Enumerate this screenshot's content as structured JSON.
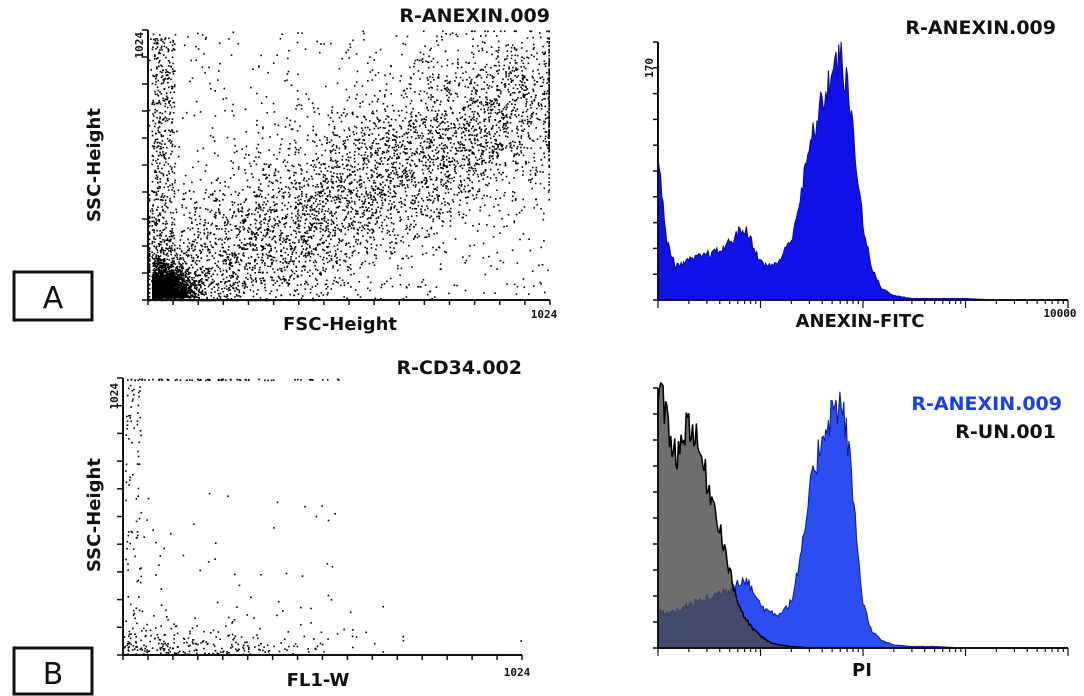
{
  "panels": [
    {
      "id": "A",
      "label": "A"
    },
    {
      "id": "B",
      "label": "B"
    }
  ],
  "chart_data": [
    {
      "type": "scatter",
      "panel": "A",
      "title": "R-ANEXIN.009",
      "xlabel": "FSC-Height",
      "ylabel": "SSC-Height",
      "x_tick_labels": [
        "1024"
      ],
      "y_tick_labels": [
        "1024"
      ],
      "xlim": [
        0,
        1024
      ],
      "ylim": [
        0,
        1024
      ],
      "distribution": "dense cluster near origin (~30,~40) plus diagonal cloud rising toward upper-right (~650,~650); sparse column near x~10",
      "color": "#000000"
    },
    {
      "type": "area",
      "panel": "A",
      "title": "R-ANEXIN.009",
      "xlabel": "ANEXIN-FITC",
      "y_tick_labels": [
        "170"
      ],
      "x_tick_labels": [
        "10000"
      ],
      "xscale": "log",
      "xlim": [
        1,
        10000
      ],
      "ylim": [
        0,
        170
      ],
      "series": [
        {
          "color": "#1010e8",
          "x": [
            1,
            1.2,
            1.5,
            2,
            3,
            4,
            5,
            6,
            7,
            8,
            9,
            10,
            12,
            15,
            20,
            25,
            30,
            40,
            50,
            60,
            70,
            80,
            90,
            100,
            120,
            150,
            200,
            300,
            500,
            1000,
            2000,
            5000,
            10000
          ],
          "y": [
            95,
            40,
            22,
            26,
            30,
            32,
            38,
            44,
            47,
            40,
            32,
            25,
            22,
            25,
            40,
            70,
            100,
            130,
            150,
            160,
            140,
            110,
            80,
            50,
            22,
            8,
            3,
            1,
            1,
            1,
            0,
            0,
            0
          ]
        }
      ]
    },
    {
      "type": "scatter",
      "panel": "B",
      "title": "R-CD34.002",
      "xlabel": "FL1-W",
      "ylabel": "SSC-Height",
      "x_tick_labels": [
        "1024"
      ],
      "y_tick_labels": [
        "1024"
      ],
      "xlim": [
        0,
        1024
      ],
      "ylim": [
        0,
        1024
      ],
      "distribution": "sparse events; cluster along bottom (y<100, x<600), column near x<50, saturated row along top edge",
      "color": "#000000"
    },
    {
      "type": "area",
      "panel": "B",
      "xlabel": "PI",
      "xscale": "log",
      "xlim": [
        1,
        10000
      ],
      "ylim": [
        0,
        170
      ],
      "legend": "top-right",
      "series": [
        {
          "name": "R-ANEXIN.009",
          "color": "#1a3ef0",
          "x": [
            1,
            1.2,
            1.5,
            2,
            3,
            4,
            5,
            6,
            7,
            8,
            9,
            10,
            12,
            15,
            20,
            25,
            30,
            40,
            50,
            60,
            70,
            80,
            90,
            100,
            120,
            150,
            200,
            300,
            500,
            1000,
            2000,
            5000,
            10000
          ],
          "y": [
            24,
            22,
            24,
            28,
            32,
            36,
            38,
            44,
            45,
            40,
            34,
            28,
            24,
            22,
            30,
            60,
            100,
            140,
            155,
            160,
            140,
            100,
            60,
            30,
            12,
            5,
            2,
            1,
            1,
            0,
            0,
            0,
            0
          ]
        },
        {
          "name": "R-UN.001",
          "color": "#5a5a5a",
          "x": [
            1,
            1.2,
            1.5,
            2,
            2.5,
            3,
            4,
            5,
            6,
            7,
            8,
            10,
            12,
            15,
            20,
            30,
            50,
            100,
            10000
          ],
          "y": [
            170,
            150,
            125,
            150,
            130,
            110,
            80,
            50,
            30,
            20,
            14,
            8,
            4,
            2,
            1,
            0,
            0,
            0,
            0
          ]
        }
      ]
    }
  ]
}
